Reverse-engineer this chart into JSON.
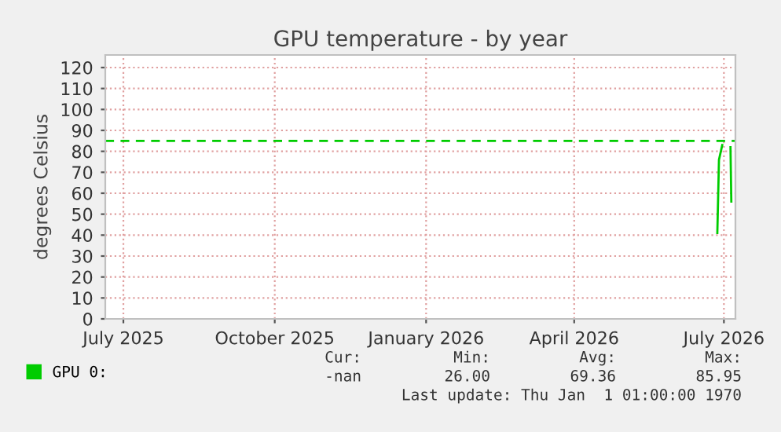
{
  "chart_data": {
    "type": "line",
    "title": "GPU temperature - by year",
    "ylabel": "degrees Celsius",
    "series": [
      {
        "name": "GPU 0:",
        "color": "#00cc00",
        "x": [
          "2026-06-27",
          "2026-06-28",
          "2026-06-30",
          "2026-07-02",
          "2026-07-05",
          "2026-07-05T12:00"
        ],
        "values": [
          41,
          76,
          83,
          null,
          82,
          56
        ]
      }
    ],
    "xlim": [
      "2025-06-20",
      "2026-07-08"
    ],
    "xticks": [
      {
        "value": "2025-07-01",
        "label": "July 2025"
      },
      {
        "value": "2025-10-01",
        "label": "October 2025"
      },
      {
        "value": "2026-01-01",
        "label": "January 2026"
      },
      {
        "value": "2026-04-01",
        "label": "April 2026"
      },
      {
        "value": "2026-07-01",
        "label": "July 2026"
      }
    ],
    "ylim": [
      0,
      126
    ],
    "yticks": [
      0,
      10,
      20,
      30,
      40,
      50,
      60,
      70,
      80,
      90,
      100,
      110,
      120
    ],
    "ref_lines": [
      {
        "axis": "y",
        "value": 85,
        "color": "#00cc00",
        "line_style": "dashed"
      }
    ],
    "grid": true,
    "legend": "bottom",
    "marker": "none",
    "line_style": "solid",
    "annotations": [
      "Cur:",
      "Min:",
      "Avg:",
      "Max:",
      "-nan",
      "26.00",
      "69.36",
      "85.95",
      "Last update: Thu Jan  1 01:00:00 1970"
    ]
  }
}
